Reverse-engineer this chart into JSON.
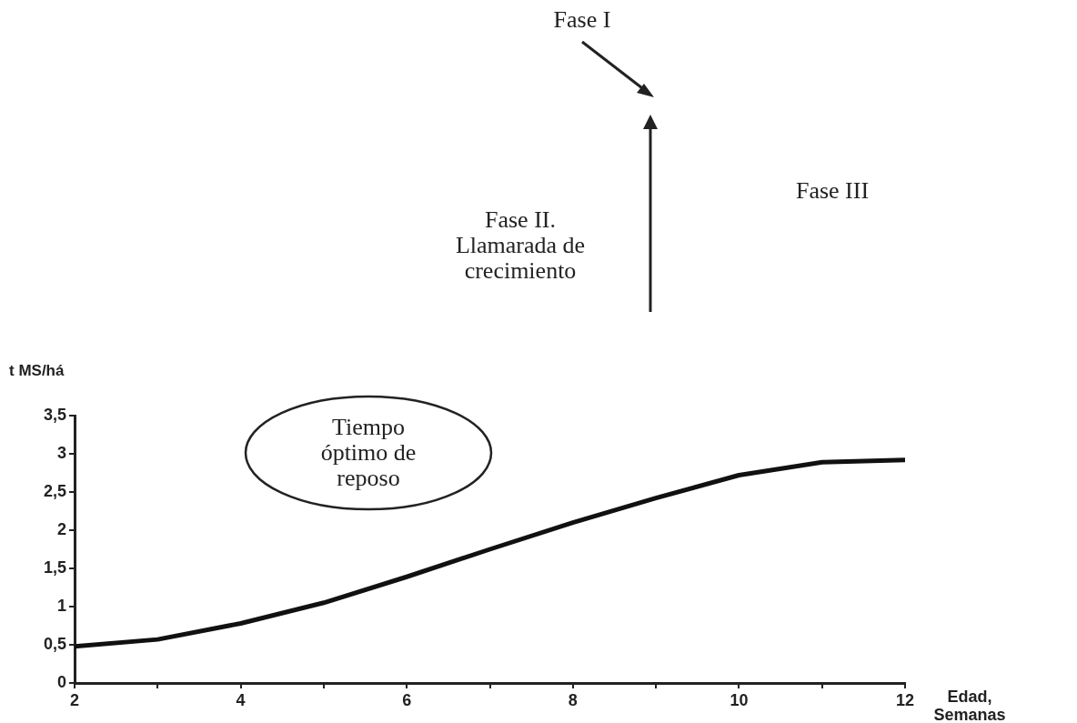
{
  "chart_data": {
    "type": "line",
    "xlabel": "Edad, Semanas",
    "ylabel": "t MS/há",
    "x": [
      2,
      3,
      4,
      5,
      6,
      7,
      8,
      9,
      10,
      11,
      12
    ],
    "series": [
      {
        "color": "#111111",
        "values": [
          0.48,
          0.57,
          0.78,
          1.05,
          1.39,
          1.75,
          2.1,
          2.42,
          2.72,
          2.89,
          2.92
        ]
      }
    ],
    "xlim": [
      2,
      12
    ],
    "xticks": [
      2,
      {
        "value": 3,
        "label": null
      },
      4,
      {
        "value": 5,
        "label": null
      },
      6,
      {
        "value": 7,
        "label": null
      },
      8,
      {
        "value": 9,
        "label": null
      },
      10,
      {
        "value": 11,
        "label": null
      },
      12
    ],
    "ylim": [
      0,
      3.5
    ],
    "yticks": [
      {
        "value": 0,
        "label": "0"
      },
      {
        "value": 0.5,
        "label": "0,5"
      },
      {
        "value": 1,
        "label": "1"
      },
      {
        "value": 1.5,
        "label": "1,5"
      },
      {
        "value": 2,
        "label": "2"
      },
      {
        "value": 2.5,
        "label": "2,5"
      },
      {
        "value": 3,
        "label": "3"
      },
      {
        "value": 3.5,
        "label": "3,5"
      }
    ],
    "marker": "none",
    "line_style": "solid",
    "legend": false,
    "annotations": [
      "Fase I",
      "Fase II.\nLlamarada de\ncrecimiento",
      "Fase III",
      "Tiempo\nóptimo de\nreposo"
    ]
  }
}
